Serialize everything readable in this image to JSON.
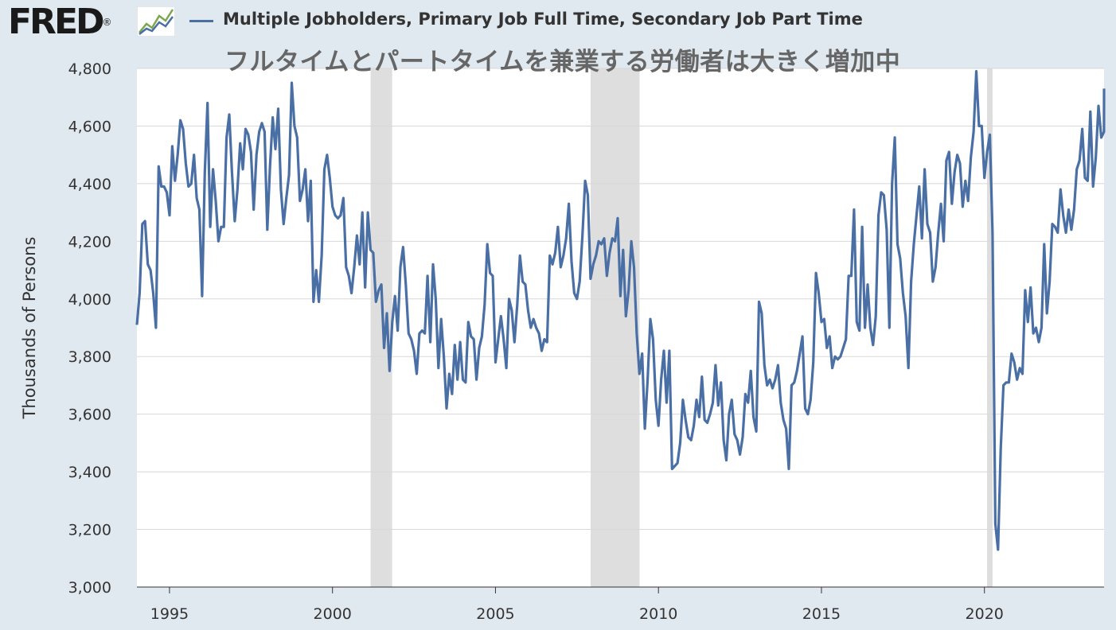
{
  "header": {
    "logo_text": "FRED",
    "logo_registered": "®",
    "logo_icon": "line-chart-icon",
    "series_legend": "Multiple Jobholders, Primary Job Full Time, Secondary Job Part Time",
    "overlay_title": "フルタイムとパートタイムを兼業する労働者は大きく増加中"
  },
  "colors": {
    "line": "#4a6fa5",
    "recession": "#dedede",
    "plot_bg": "#ffffff",
    "page_bg": "#e1e9f0",
    "grid": "#d8d8d8"
  },
  "chart_data": {
    "type": "line",
    "ylabel": "Thousands of Persons",
    "xlabel": "",
    "ylim": [
      3000,
      4800
    ],
    "xlim": [
      1994.0,
      2023.67
    ],
    "yticks": [
      3000,
      3200,
      3400,
      3600,
      3800,
      4000,
      4200,
      4400,
      4600,
      4800
    ],
    "ytick_labels": [
      "3,000",
      "3,200",
      "3,400",
      "3,600",
      "3,800",
      "4,000",
      "4,200",
      "4,400",
      "4,600",
      "4,800"
    ],
    "xticks": [
      1995,
      2000,
      2005,
      2010,
      2015,
      2020
    ],
    "xtick_labels": [
      "1995",
      "2000",
      "2005",
      "2010",
      "2015",
      "2020"
    ],
    "grid": "horizontal",
    "legend": "top",
    "recessions": [
      [
        2001.17,
        2001.83
      ],
      [
        2007.92,
        2009.42
      ],
      [
        2020.08,
        2020.25
      ]
    ],
    "series": [
      {
        "name": "Multiple Jobholders, Primary Job Full Time, Secondary Job Part Time",
        "start": 1994.0,
        "step": 0.0833333,
        "values": [
          3910,
          4020,
          4260,
          4270,
          4120,
          4100,
          4020,
          3900,
          4460,
          4390,
          4390,
          4370,
          4290,
          4530,
          4410,
          4500,
          4620,
          4590,
          4470,
          4390,
          4400,
          4500,
          4350,
          4310,
          4010,
          4440,
          4680,
          4250,
          4450,
          4340,
          4200,
          4250,
          4250,
          4560,
          4640,
          4440,
          4270,
          4380,
          4540,
          4450,
          4590,
          4570,
          4510,
          4310,
          4500,
          4580,
          4610,
          4580,
          4240,
          4460,
          4630,
          4520,
          4660,
          4380,
          4260,
          4350,
          4430,
          4750,
          4600,
          4560,
          4340,
          4380,
          4450,
          4270,
          4410,
          3990,
          4100,
          3990,
          4150,
          4450,
          4500,
          4420,
          4320,
          4290,
          4280,
          4290,
          4350,
          4110,
          4080,
          4020,
          4110,
          4220,
          4120,
          4300,
          4040,
          4300,
          4170,
          4160,
          3990,
          4030,
          4050,
          3830,
          3950,
          3750,
          3920,
          4010,
          3890,
          4110,
          4180,
          4050,
          3880,
          3860,
          3820,
          3740,
          3880,
          3890,
          3880,
          4080,
          3850,
          4120,
          4000,
          3760,
          3930,
          3800,
          3620,
          3740,
          3670,
          3840,
          3720,
          3850,
          3720,
          3710,
          3920,
          3870,
          3860,
          3720,
          3830,
          3870,
          3980,
          4190,
          4090,
          4080,
          3780,
          3860,
          3940,
          3860,
          3760,
          4000,
          3960,
          3850,
          3980,
          4150,
          4060,
          4050,
          3960,
          3900,
          3930,
          3900,
          3880,
          3820,
          3860,
          3850,
          4150,
          4120,
          4160,
          4250,
          4110,
          4150,
          4210,
          4330,
          4130,
          4020,
          4000,
          4060,
          4220,
          4410,
          4360,
          4070,
          4120,
          4150,
          4200,
          4190,
          4210,
          4080,
          4160,
          4210,
          4200,
          4280,
          4010,
          4170,
          3940,
          4030,
          4200,
          4110,
          3880,
          3740,
          3810,
          3550,
          3720,
          3930,
          3860,
          3650,
          3560,
          3720,
          3820,
          3640,
          3820,
          3410,
          3420,
          3430,
          3500,
          3650,
          3580,
          3520,
          3510,
          3560,
          3650,
          3590,
          3730,
          3580,
          3570,
          3600,
          3640,
          3770,
          3630,
          3710,
          3510,
          3440,
          3600,
          3650,
          3530,
          3510,
          3460,
          3520,
          3670,
          3640,
          3750,
          3590,
          3540,
          3990,
          3950,
          3770,
          3700,
          3720,
          3690,
          3720,
          3770,
          3640,
          3580,
          3550,
          3410,
          3700,
          3710,
          3750,
          3810,
          3870,
          3620,
          3600,
          3650,
          3780,
          4090,
          4020,
          3920,
          3930,
          3830,
          3870,
          3760,
          3800,
          3790,
          3800,
          3830,
          3860,
          4080,
          4080,
          4310,
          3920,
          3890,
          4250,
          3900,
          4050,
          3900,
          3840,
          3940,
          4290,
          4370,
          4360,
          4240,
          3900,
          4400,
          4560,
          4190,
          4140,
          4020,
          3940,
          3760,
          4060,
          4190,
          4290,
          4390,
          4210,
          4450,
          4260,
          4230,
          4060,
          4110,
          4230,
          4330,
          4200,
          4480,
          4510,
          4330,
          4440,
          4500,
          4470,
          4320,
          4410,
          4340,
          4490,
          4580,
          4790,
          4600,
          4600,
          4420,
          4510,
          4570,
          4230,
          3220,
          3130,
          3480,
          3700,
          3710,
          3710,
          3810,
          3780,
          3720,
          3760,
          3740,
          4030,
          3920,
          4040,
          3880,
          3900,
          3850,
          3900,
          4190,
          3950,
          4060,
          4260,
          4250,
          4230,
          4380,
          4290,
          4230,
          4310,
          4240,
          4310,
          4450,
          4480,
          4590,
          4420,
          4410,
          4650,
          4390,
          4490,
          4670,
          4560,
          4580,
          4730
        ]
      }
    ]
  }
}
